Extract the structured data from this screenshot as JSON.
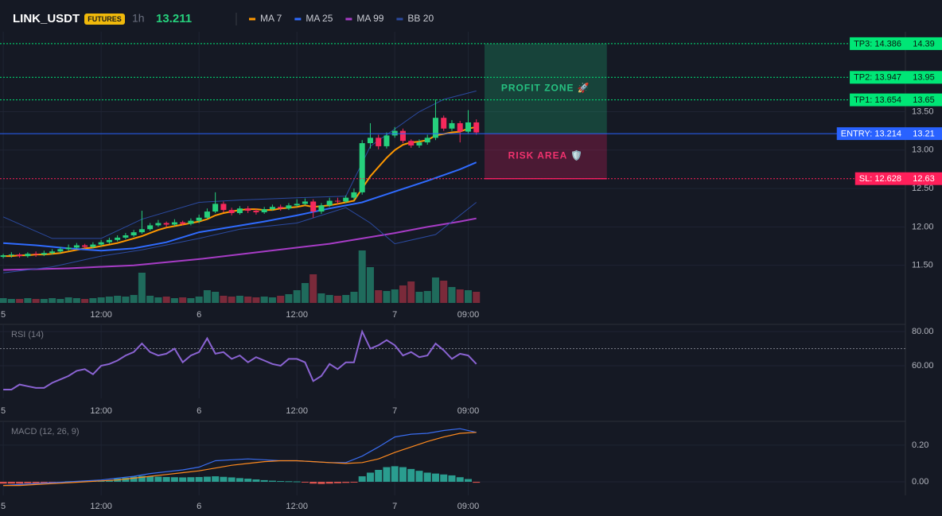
{
  "chart_data": [
    {
      "type": "candlestick",
      "title": "LINK_USDT",
      "badge": "FUTURES",
      "interval": "1h",
      "last_price": 13.211,
      "x": [
        0,
        1,
        2,
        3,
        4,
        5,
        6,
        7,
        8,
        9,
        10,
        11,
        12,
        13,
        14,
        15,
        16,
        17,
        18,
        19,
        20,
        21,
        22,
        23,
        24,
        25,
        26,
        27,
        28,
        29,
        30,
        31,
        32,
        33,
        34,
        35,
        36,
        37,
        38,
        39,
        40,
        41,
        42,
        43,
        44,
        45,
        46,
        47,
        48,
        49,
        50,
        51,
        52,
        53,
        54,
        55,
        56,
        57,
        58
      ],
      "open": [
        11.61,
        11.63,
        11.64,
        11.62,
        11.65,
        11.64,
        11.66,
        11.68,
        11.71,
        11.73,
        11.76,
        11.74,
        11.77,
        11.8,
        11.83,
        11.86,
        11.89,
        11.93,
        11.97,
        12.02,
        12.05,
        12.03,
        12.06,
        12.04,
        12.08,
        12.12,
        12.2,
        12.3,
        12.22,
        12.18,
        12.24,
        12.21,
        12.19,
        12.23,
        12.26,
        12.24,
        12.28,
        12.3,
        12.33,
        12.2,
        12.28,
        12.34,
        12.33,
        12.38,
        12.45,
        13.09,
        13.16,
        13.05,
        13.19,
        13.25,
        13.12,
        13.06,
        13.1,
        13.16,
        13.42,
        13.28,
        13.35,
        13.24,
        13.36
      ],
      "high": [
        11.65,
        11.67,
        11.66,
        11.67,
        11.68,
        11.69,
        11.71,
        11.74,
        11.77,
        11.79,
        11.78,
        11.8,
        11.83,
        11.86,
        11.89,
        11.92,
        11.96,
        12.21,
        12.05,
        12.09,
        12.07,
        12.1,
        12.08,
        12.11,
        12.16,
        12.24,
        12.45,
        12.33,
        12.25,
        12.27,
        12.27,
        12.24,
        12.26,
        12.29,
        12.29,
        12.31,
        12.36,
        12.37,
        12.36,
        12.31,
        12.38,
        12.38,
        12.41,
        12.5,
        13.13,
        13.35,
        13.2,
        13.23,
        13.3,
        13.28,
        13.14,
        13.14,
        13.2,
        13.66,
        13.45,
        13.39,
        13.38,
        13.52,
        13.4
      ],
      "low": [
        11.59,
        11.6,
        11.6,
        11.6,
        11.61,
        11.62,
        11.64,
        11.66,
        11.69,
        11.71,
        11.72,
        11.72,
        11.75,
        11.78,
        11.81,
        11.84,
        11.87,
        11.91,
        11.95,
        12.0,
        12.0,
        12.01,
        12.02,
        12.02,
        12.05,
        12.1,
        12.18,
        12.19,
        12.15,
        12.16,
        12.18,
        12.16,
        12.17,
        12.21,
        12.21,
        12.22,
        12.26,
        12.28,
        12.12,
        12.17,
        12.26,
        12.3,
        12.31,
        12.35,
        12.42,
        13.02,
        13.01,
        13.02,
        13.16,
        13.09,
        13.03,
        13.03,
        13.07,
        13.13,
        13.25,
        13.25,
        13.1,
        13.21,
        13.2
      ],
      "close": [
        11.63,
        11.64,
        11.62,
        11.65,
        11.64,
        11.66,
        11.68,
        11.71,
        11.73,
        11.76,
        11.74,
        11.77,
        11.8,
        11.83,
        11.86,
        11.89,
        11.93,
        11.97,
        12.02,
        12.05,
        12.03,
        12.06,
        12.04,
        12.08,
        12.12,
        12.2,
        12.3,
        12.22,
        12.18,
        12.24,
        12.21,
        12.19,
        12.23,
        12.26,
        12.24,
        12.28,
        12.3,
        12.33,
        12.2,
        12.28,
        12.34,
        12.33,
        12.38,
        12.45,
        13.09,
        13.16,
        13.05,
        13.19,
        13.25,
        13.12,
        13.06,
        13.1,
        13.16,
        13.42,
        13.28,
        13.35,
        13.24,
        13.36,
        13.23
      ],
      "up_color": "#26d07c",
      "down_color": "#f6295c",
      "volume": {
        "values": [
          6,
          5,
          5,
          6,
          5,
          5,
          6,
          5,
          7,
          6,
          5,
          6,
          7,
          8,
          9,
          8,
          10,
          38,
          9,
          7,
          8,
          6,
          7,
          6,
          8,
          16,
          14,
          9,
          8,
          9,
          8,
          7,
          8,
          7,
          9,
          11,
          16,
          25,
          36,
          12,
          10,
          9,
          10,
          14,
          66,
          45,
          16,
          15,
          17,
          22,
          27,
          14,
          15,
          32,
          28,
          20,
          17,
          16,
          14
        ],
        "ylim": [
          0,
          100
        ],
        "up_color": "#1f6b5c",
        "down_color": "#7a2a3a"
      },
      "series": [
        {
          "name": "MA 7",
          "color": "#ff9800",
          "values": [
            11.62,
            11.62,
            11.63,
            11.63,
            11.64,
            11.64,
            11.65,
            11.66,
            11.68,
            11.7,
            11.72,
            11.73,
            11.75,
            11.77,
            11.79,
            11.82,
            11.85,
            11.88,
            11.92,
            11.96,
            11.99,
            12.01,
            12.03,
            12.05,
            12.07,
            12.1,
            12.15,
            12.18,
            12.2,
            12.22,
            12.23,
            12.23,
            12.22,
            12.22,
            12.24,
            12.25,
            12.26,
            12.28,
            12.26,
            12.27,
            12.28,
            12.3,
            12.32,
            12.34,
            12.5,
            12.66,
            12.78,
            12.9,
            13.0,
            13.07,
            13.1,
            13.11,
            13.13,
            13.19,
            13.21,
            13.23,
            13.24,
            13.28,
            13.3
          ]
        },
        {
          "name": "MA 25",
          "color": "#2f6bff",
          "x": [
            0,
            4,
            8,
            12,
            16,
            20,
            24,
            28,
            32,
            36,
            40,
            44,
            48,
            52,
            56,
            58
          ],
          "values": [
            11.79,
            11.76,
            11.72,
            11.69,
            11.72,
            11.8,
            11.93,
            12.0,
            12.07,
            12.15,
            12.24,
            12.32,
            12.46,
            12.6,
            12.75,
            12.84
          ]
        },
        {
          "name": "MA 99",
          "color": "#a73cc6",
          "x": [
            0,
            8,
            16,
            24,
            32,
            40,
            48,
            52,
            56,
            58
          ],
          "values": [
            11.44,
            11.46,
            11.5,
            11.58,
            11.68,
            11.78,
            11.92,
            12.0,
            12.07,
            12.11
          ]
        },
        {
          "name": "BB 20",
          "color": "#2b4aa0",
          "upper": {
            "x": [
              0,
              6,
              12,
              17,
              24,
              29,
              36,
              42,
              45,
              51,
              54,
              58
            ],
            "values": [
              12.13,
              11.85,
              11.85,
              12.1,
              12.32,
              12.35,
              12.38,
              12.4,
              13.05,
              13.5,
              13.66,
              13.77
            ]
          },
          "lower": {
            "x": [
              0,
              6,
              12,
              17,
              24,
              29,
              36,
              42,
              45,
              48,
              53,
              58
            ],
            "values": [
              11.4,
              11.48,
              11.62,
              11.7,
              11.85,
              11.97,
              12.05,
              12.25,
              12.05,
              11.78,
              11.9,
              12.32
            ]
          }
        }
      ],
      "levels": [
        {
          "label": "TP3: 14.386",
          "value": 14.386,
          "axis_value": 14.39,
          "color": "#00e676",
          "text_color": "#0b1a12",
          "style": "dotted"
        },
        {
          "label": "TP2: 13.947",
          "value": 13.947,
          "axis_value": 13.95,
          "color": "#00e676",
          "text_color": "#0b1a12",
          "style": "dotted"
        },
        {
          "label": "TP1: 13.654",
          "value": 13.654,
          "axis_value": 13.65,
          "color": "#00e676",
          "text_color": "#0b1a12",
          "style": "dotted"
        },
        {
          "label": "ENTRY: 13.214",
          "value": 13.214,
          "axis_value": 13.21,
          "color": "#2962ff",
          "text_color": "#ffffff",
          "style": "solid"
        },
        {
          "label": "SL: 12.628",
          "value": 12.628,
          "axis_value": 12.63,
          "color": "#ff1f5a",
          "text_color": "#ffffff",
          "style": "dotted"
        }
      ],
      "zones": [
        {
          "label": "PROFIT ZONE 🚀",
          "from": 13.214,
          "to": 14.386,
          "x": [
            59,
            74
          ],
          "color": "#1fbf7a",
          "text_color": "#26c281"
        },
        {
          "label": "RISK AREA 🛡️",
          "from": 12.628,
          "to": 13.214,
          "x": [
            59,
            74
          ],
          "color": "#e91e63",
          "text_color": "#f0326e"
        }
      ],
      "xlim": [
        -0.4,
        110.6
      ],
      "ylim": [
        11.01,
        14.54
      ],
      "xticks": [
        {
          "value": 0,
          "label": "5"
        },
        {
          "value": 12,
          "label": "12:00"
        },
        {
          "value": 24,
          "label": "6"
        },
        {
          "value": 36,
          "label": "12:00"
        },
        {
          "value": 48,
          "label": "7"
        },
        {
          "value": 57,
          "label": "09:00"
        }
      ],
      "yticks": [
        {
          "value": 11.5,
          "label": "11.50"
        },
        {
          "value": 12,
          "label": "12.00"
        },
        {
          "value": 12.5,
          "label": "12.50"
        },
        {
          "value": 13,
          "label": "13.00"
        },
        {
          "value": 13.5,
          "label": "13.50"
        }
      ],
      "grid": true
    },
    {
      "type": "line",
      "title": "RSI (14)",
      "color": "#8a63d2",
      "level": 70,
      "x": [
        0,
        1,
        2,
        3,
        4,
        5,
        6,
        7,
        8,
        9,
        10,
        11,
        12,
        13,
        14,
        15,
        16,
        17,
        18,
        19,
        20,
        21,
        22,
        23,
        24,
        25,
        26,
        27,
        28,
        29,
        30,
        31,
        32,
        33,
        34,
        35,
        36,
        37,
        38,
        39,
        40,
        41,
        42,
        43,
        44,
        45,
        46,
        47,
        48,
        49,
        50,
        51,
        52,
        53,
        54,
        55,
        56,
        57,
        58
      ],
      "values": [
        46,
        46,
        49,
        48,
        47,
        47,
        50,
        52,
        54,
        57,
        58,
        55,
        60,
        61,
        63,
        66,
        68,
        73,
        68,
        66,
        67,
        70,
        62,
        66,
        68,
        76,
        67,
        68,
        64,
        66,
        62,
        65,
        63,
        61,
        60,
        64,
        64,
        62,
        51,
        54,
        61,
        58,
        62,
        62,
        80,
        70,
        72,
        75,
        72,
        66,
        68,
        65,
        66,
        73,
        69,
        64,
        67,
        66,
        61
      ],
      "xlim": [
        -0.4,
        110.6
      ],
      "ylim": [
        40.9,
        84.2
      ],
      "xticks": [
        {
          "value": 0,
          "label": "5"
        },
        {
          "value": 12,
          "label": "12:00"
        },
        {
          "value": 24,
          "label": "6"
        },
        {
          "value": 36,
          "label": "12:00"
        },
        {
          "value": 48,
          "label": "7"
        },
        {
          "value": 57,
          "label": "09:00"
        }
      ],
      "yticks": [
        {
          "value": 60,
          "label": "60.00"
        },
        {
          "value": 80,
          "label": "80.00"
        }
      ],
      "grid": true
    },
    {
      "type": "macd",
      "title": "MACD (12, 26, 9)",
      "macd": {
        "color": "#3a6df0",
        "x": [
          0,
          2,
          4,
          6,
          8,
          10,
          12,
          14,
          16,
          18,
          20,
          22,
          24,
          26,
          28,
          30,
          32,
          34,
          36,
          38,
          40,
          42,
          44,
          46,
          48,
          50,
          52,
          54,
          56,
          58
        ],
        "values": [
          -0.02,
          -0.015,
          -0.01,
          -0.005,
          0,
          0.005,
          0.01,
          0.02,
          0.03,
          0.045,
          0.055,
          0.065,
          0.08,
          0.115,
          0.12,
          0.125,
          0.12,
          0.115,
          0.115,
          0.11,
          0.105,
          0.105,
          0.14,
          0.19,
          0.245,
          0.26,
          0.265,
          0.28,
          0.29,
          0.27
        ]
      },
      "signal": {
        "color": "#ff8a1e",
        "x": [
          0,
          2,
          4,
          6,
          8,
          10,
          12,
          14,
          16,
          18,
          20,
          22,
          24,
          26,
          28,
          30,
          32,
          34,
          36,
          38,
          40,
          42,
          44,
          46,
          48,
          50,
          52,
          54,
          56,
          58
        ],
        "values": [
          -0.02,
          -0.02,
          -0.015,
          -0.01,
          -0.005,
          0,
          0.005,
          0.01,
          0.02,
          0.03,
          0.04,
          0.05,
          0.06,
          0.075,
          0.09,
          0.1,
          0.11,
          0.115,
          0.115,
          0.11,
          0.105,
          0.1,
          0.105,
          0.125,
          0.16,
          0.19,
          0.22,
          0.245,
          0.265,
          0.27
        ]
      },
      "histogram": {
        "up_color": "#2a9d8f",
        "down_color": "#d9534f",
        "x": [
          0,
          1,
          2,
          3,
          4,
          5,
          6,
          7,
          8,
          9,
          10,
          11,
          12,
          13,
          14,
          15,
          16,
          17,
          18,
          19,
          20,
          21,
          22,
          23,
          24,
          25,
          26,
          27,
          28,
          29,
          30,
          31,
          32,
          33,
          34,
          35,
          36,
          37,
          38,
          39,
          40,
          41,
          42,
          43,
          44,
          45,
          46,
          47,
          48,
          49,
          50,
          51,
          52,
          53,
          54,
          55,
          56,
          57,
          58
        ],
        "values": [
          -0.01,
          -0.01,
          -0.01,
          -0.008,
          -0.008,
          -0.006,
          -0.005,
          -0.004,
          0.003,
          0.004,
          0.005,
          0.006,
          0.006,
          0.008,
          0.018,
          0.022,
          0.028,
          0.032,
          0.03,
          0.028,
          0.026,
          0.025,
          0.024,
          0.025,
          0.026,
          0.028,
          0.03,
          0.027,
          0.024,
          0.02,
          0.017,
          0.013,
          0.009,
          0.006,
          0.004,
          0.003,
          0.002,
          -0.002,
          -0.01,
          -0.012,
          -0.01,
          -0.008,
          -0.006,
          -0.004,
          0.03,
          0.05,
          0.065,
          0.08,
          0.085,
          0.08,
          0.07,
          0.06,
          0.05,
          0.045,
          0.04,
          0.035,
          0.025,
          0.015,
          -0.005
        ]
      },
      "xlim": [
        -0.4,
        110.6
      ],
      "ylim": [
        -0.074,
        0.33
      ],
      "xticks": [
        {
          "value": 0,
          "label": "5"
        },
        {
          "value": 12,
          "label": "12:00"
        },
        {
          "value": 24,
          "label": "6"
        },
        {
          "value": 36,
          "label": "12:00"
        },
        {
          "value": 48,
          "label": "7"
        },
        {
          "value": 57,
          "label": "09:00"
        }
      ],
      "yticks": [
        {
          "value": 0,
          "label": "0.00"
        },
        {
          "value": 0.2,
          "label": "0.20"
        }
      ],
      "grid": true
    }
  ]
}
